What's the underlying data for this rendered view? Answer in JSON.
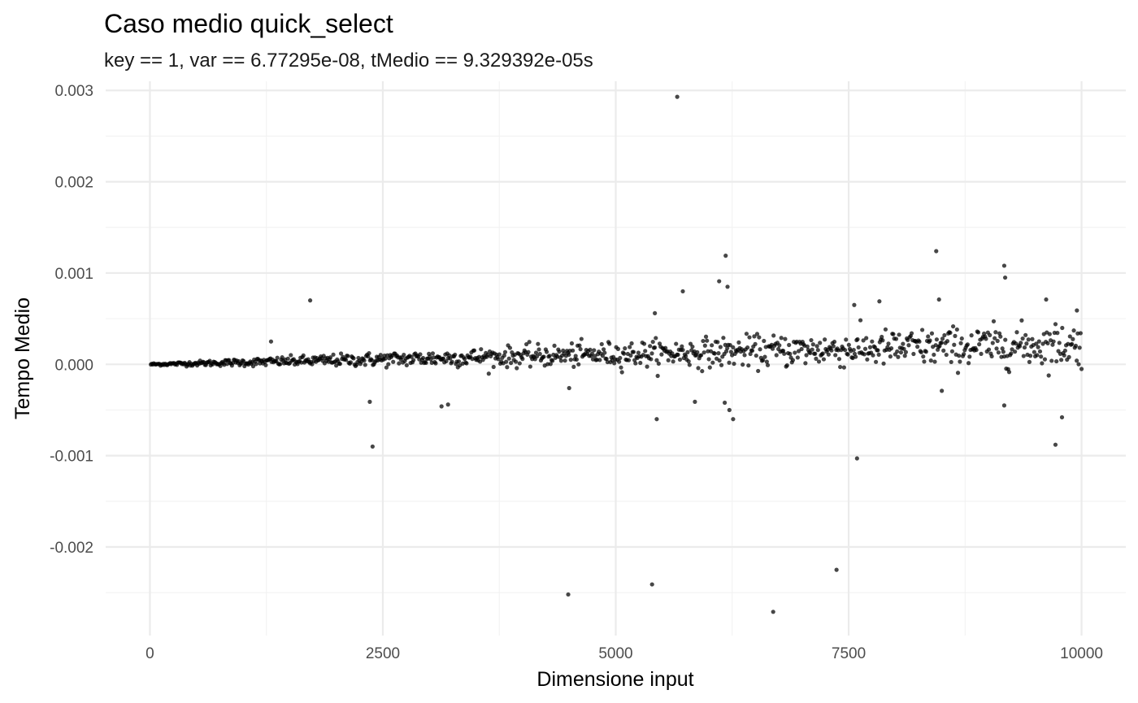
{
  "chart_data": {
    "type": "scatter",
    "title": "Caso medio quick_select",
    "subtitle": "key == 1, var == 6.77295e-08, tMedio == 9.329392e-05s",
    "xlabel": "Dimensione input",
    "ylabel": "Tempo Medio",
    "xlim": [
      -475,
      10475
    ],
    "ylim": [
      -0.00297,
      0.0031
    ],
    "x_ticks": [
      0,
      2500,
      5000,
      7500,
      10000
    ],
    "x_tick_labels": [
      "0",
      "2500",
      "5000",
      "7500",
      "10000"
    ],
    "y_ticks": [
      -0.002,
      -0.001,
      0.0,
      0.001,
      0.002,
      0.003
    ],
    "y_tick_labels": [
      "-0.002",
      "-0.001",
      "0.000",
      "0.001",
      "0.002",
      "0.003"
    ],
    "grid": true,
    "legend": "none",
    "point_color": "#000000",
    "n_points": 1000,
    "trend": {
      "description_free": true,
      "x_range": [
        10,
        10000
      ],
      "mean_start": 0.0,
      "mean_end": 0.00022
    },
    "outliers": [
      {
        "x": 1720,
        "y": 0.0007
      },
      {
        "x": 1300,
        "y": 0.00025
      },
      {
        "x": 2360,
        "y": -0.00041
      },
      {
        "x": 2390,
        "y": -0.0009
      },
      {
        "x": 3130,
        "y": -0.00046
      },
      {
        "x": 3200,
        "y": -0.00044
      },
      {
        "x": 4490,
        "y": -0.00252
      },
      {
        "x": 4500,
        "y": -0.00026
      },
      {
        "x": 5390,
        "y": -0.00241
      },
      {
        "x": 5440,
        "y": -0.0006
      },
      {
        "x": 5660,
        "y": 0.00293
      },
      {
        "x": 5720,
        "y": 0.0008
      },
      {
        "x": 5420,
        "y": 0.00056
      },
      {
        "x": 6110,
        "y": 0.00091
      },
      {
        "x": 6180,
        "y": 0.00119
      },
      {
        "x": 6200,
        "y": 0.00085
      },
      {
        "x": 6170,
        "y": -0.00042
      },
      {
        "x": 6220,
        "y": -0.0005
      },
      {
        "x": 6260,
        "y": -0.0006
      },
      {
        "x": 6690,
        "y": -0.00271
      },
      {
        "x": 5850,
        "y": -0.00041
      },
      {
        "x": 7370,
        "y": -0.00225
      },
      {
        "x": 7590,
        "y": -0.00103
      },
      {
        "x": 7560,
        "y": 0.00065
      },
      {
        "x": 7830,
        "y": 0.00069
      },
      {
        "x": 8440,
        "y": 0.00124
      },
      {
        "x": 8470,
        "y": 0.00071
      },
      {
        "x": 8500,
        "y": -0.00029
      },
      {
        "x": 9170,
        "y": 0.00108
      },
      {
        "x": 9180,
        "y": 0.00095
      },
      {
        "x": 9170,
        "y": -0.00045
      },
      {
        "x": 9720,
        "y": -0.00088
      },
      {
        "x": 9790,
        "y": -0.00058
      },
      {
        "x": 9620,
        "y": 0.00071
      },
      {
        "x": 9950,
        "y": 0.00059
      }
    ]
  }
}
